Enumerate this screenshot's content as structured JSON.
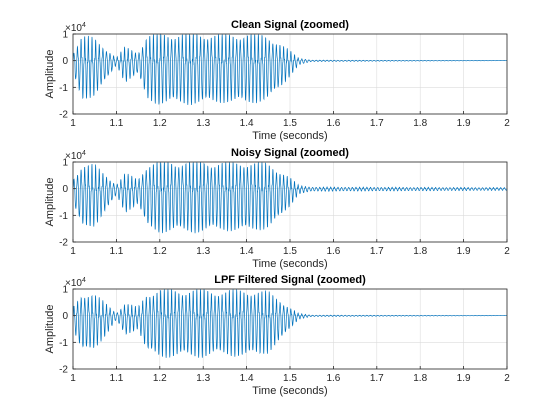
{
  "colors": {
    "line": "#0072BD",
    "grid": "#dcdcdc",
    "axis": "#262626"
  },
  "exponent": {
    "base": "×10",
    "power": "4"
  },
  "chart_data": [
    {
      "type": "line",
      "title": "Clean Signal (zoomed)",
      "xlabel": "Time (seconds)",
      "ylabel": "Amplitude",
      "xlim": [
        1,
        2
      ],
      "ylim": [
        -2,
        1
      ],
      "xticks": [
        "1",
        "1.1",
        "1.2",
        "1.3",
        "1.4",
        "1.5",
        "1.6",
        "1.7",
        "1.8",
        "1.9",
        "2"
      ],
      "yticks": [
        "-2",
        "-1",
        "0",
        "1"
      ],
      "y_scale_exponent": 4,
      "grid": true,
      "series": [
        {
          "envelope": [
            [
              1.0,
              0.3
            ],
            [
              1.02,
              0.9
            ],
            [
              1.05,
              0.8
            ],
            [
              1.08,
              0.4
            ],
            [
              1.1,
              0.1
            ],
            [
              1.12,
              0.5
            ],
            [
              1.15,
              0.3
            ],
            [
              1.17,
              0.9
            ],
            [
              1.2,
              1.0
            ],
            [
              1.25,
              1.0
            ],
            [
              1.3,
              1.0
            ],
            [
              1.35,
              0.95
            ],
            [
              1.4,
              1.0
            ],
            [
              1.45,
              0.9
            ],
            [
              1.48,
              0.6
            ],
            [
              1.5,
              0.35
            ],
            [
              1.52,
              0.1
            ],
            [
              1.55,
              0.02
            ],
            [
              2.0,
              0.0
            ]
          ]
        }
      ]
    },
    {
      "type": "line",
      "title": "Noisy Signal (zoomed)",
      "xlabel": "Time (seconds)",
      "ylabel": "Amplitude",
      "xlim": [
        1,
        2
      ],
      "ylim": [
        -2,
        1
      ],
      "xticks": [
        "1",
        "1.1",
        "1.2",
        "1.3",
        "1.4",
        "1.5",
        "1.6",
        "1.7",
        "1.8",
        "1.9",
        "2"
      ],
      "yticks": [
        "-2",
        "-1",
        "0",
        "1"
      ],
      "y_scale_exponent": 4,
      "grid": true,
      "series": [
        {
          "envelope": [
            [
              1.0,
              0.35
            ],
            [
              1.02,
              0.9
            ],
            [
              1.05,
              0.85
            ],
            [
              1.08,
              0.45
            ],
            [
              1.1,
              0.15
            ],
            [
              1.12,
              0.55
            ],
            [
              1.15,
              0.35
            ],
            [
              1.17,
              0.9
            ],
            [
              1.2,
              1.0
            ],
            [
              1.25,
              1.0
            ],
            [
              1.3,
              1.0
            ],
            [
              1.35,
              0.95
            ],
            [
              1.4,
              1.0
            ],
            [
              1.45,
              0.9
            ],
            [
              1.48,
              0.65
            ],
            [
              1.5,
              0.4
            ],
            [
              1.52,
              0.12
            ],
            [
              1.55,
              0.06
            ],
            [
              2.0,
              0.04
            ]
          ]
        }
      ]
    },
    {
      "type": "line",
      "title": "LPF Filtered Signal (zoomed)",
      "xlabel": "Time (seconds)",
      "ylabel": "Amplitude",
      "xlim": [
        1,
        2
      ],
      "ylim": [
        -2,
        1
      ],
      "xticks": [
        "1",
        "1.1",
        "1.2",
        "1.3",
        "1.4",
        "1.5",
        "1.6",
        "1.7",
        "1.8",
        "1.9",
        "2"
      ],
      "yticks": [
        "-2",
        "-1",
        "0",
        "1"
      ],
      "y_scale_exponent": 4,
      "grid": true,
      "series": [
        {
          "envelope": [
            [
              1.0,
              0.3
            ],
            [
              1.02,
              0.85
            ],
            [
              1.05,
              0.75
            ],
            [
              1.08,
              0.4
            ],
            [
              1.1,
              0.1
            ],
            [
              1.12,
              0.45
            ],
            [
              1.15,
              0.3
            ],
            [
              1.17,
              0.85
            ],
            [
              1.2,
              0.95
            ],
            [
              1.25,
              0.95
            ],
            [
              1.3,
              0.95
            ],
            [
              1.35,
              0.9
            ],
            [
              1.4,
              0.95
            ],
            [
              1.45,
              0.85
            ],
            [
              1.48,
              0.55
            ],
            [
              1.5,
              0.3
            ],
            [
              1.52,
              0.08
            ],
            [
              1.55,
              0.02
            ],
            [
              2.0,
              0.0
            ]
          ]
        }
      ]
    }
  ]
}
